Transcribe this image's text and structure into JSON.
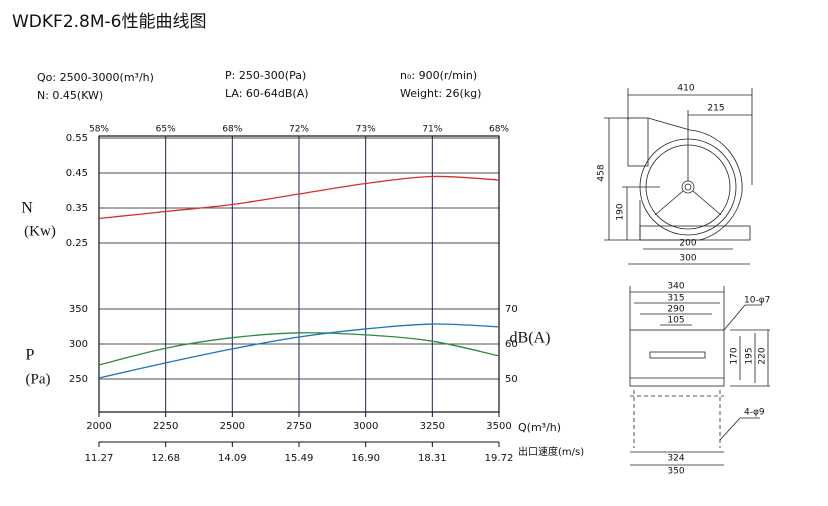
{
  "chart_data": {
    "type": "line",
    "title": "WDKF2.8M-6性能曲线图",
    "specs": [
      "Qo: 2500-3000(m³/h)",
      "N: 0.45(KW)",
      "P: 250-300(Pa)",
      "LA: 60-64dB(A)",
      "n₀: 900(r/min)",
      "Weight: 26(kg)"
    ],
    "x": [
      2000,
      2250,
      2500,
      2750,
      3000,
      3250,
      3500
    ],
    "xlim": [
      2000,
      3500
    ],
    "xticks": [
      2000,
      2250,
      2500,
      2750,
      3000,
      3250,
      3500
    ],
    "x_label": "Q(m³/h)",
    "efficiency_labels": [
      "58%",
      "65%",
      "68%",
      "72%",
      "73%",
      "71%",
      "68%"
    ],
    "speed_label": "出口速度(m/s)",
    "speed_labels": [
      "11.27",
      "12.68",
      "14.09",
      "15.49",
      "16.90",
      "18.31",
      "19.72"
    ],
    "grid": true,
    "series": [
      {
        "name": "N",
        "unit": "(Kw)",
        "color": "#d4302c",
        "values": [
          0.32,
          0.34,
          0.36,
          0.39,
          0.42,
          0.44,
          0.43
        ],
        "ylim": [
          0.25,
          0.55
        ],
        "yticks": [
          0.25,
          0.35,
          0.45,
          0.55
        ]
      },
      {
        "name": "P",
        "unit": "(Pa)",
        "color": "#2e8b3e",
        "values": [
          270,
          294,
          309,
          316,
          313,
          304,
          283
        ],
        "ylim": [
          250,
          350
        ],
        "yticks": [
          250,
          300,
          350
        ]
      },
      {
        "name": "dB(A)",
        "color": "#1e73be",
        "axis": "y2",
        "values": [
          50.3,
          54.6,
          58.6,
          62,
          64.3,
          65.7,
          64.9
        ],
        "ylim": [
          50,
          70
        ],
        "yticks": [
          50,
          60,
          70
        ]
      }
    ]
  },
  "drawings": {
    "front": [
      "410",
      "215",
      "458",
      "190",
      "200",
      "300"
    ],
    "side": [
      "340",
      "315",
      "290",
      "105",
      "10-φ7",
      "170",
      "195",
      "220",
      "4-φ9",
      "324",
      "350"
    ]
  }
}
